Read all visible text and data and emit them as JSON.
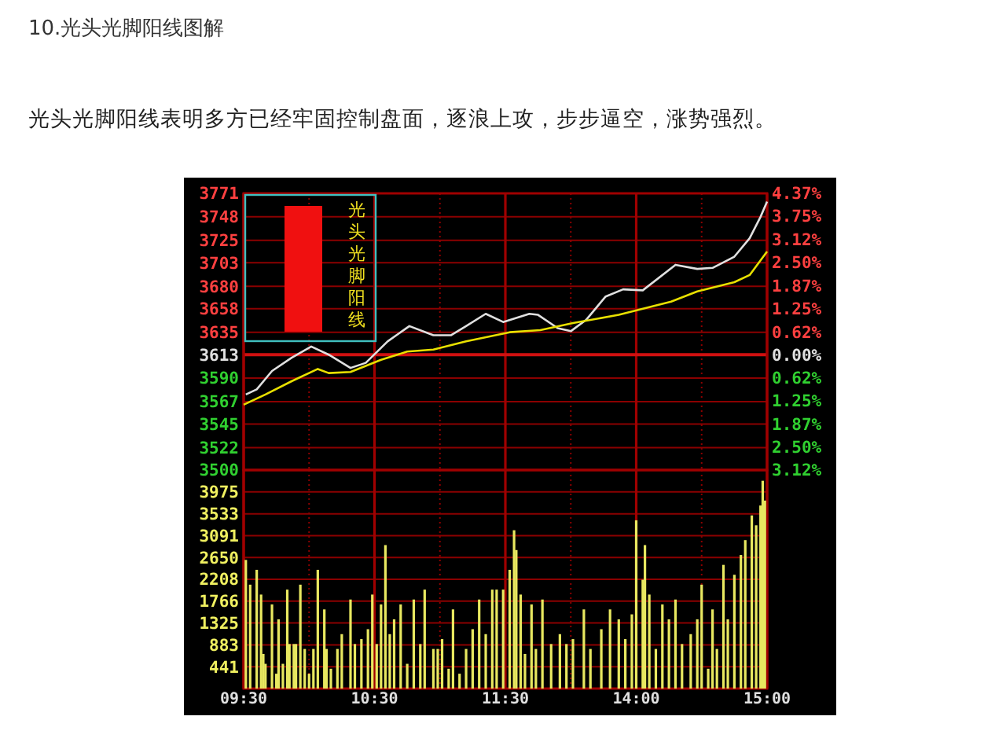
{
  "chart_data": [
    {
      "type": "line",
      "title": "10.光头光脚阳线图解",
      "subtitle": "光头光脚阳线表明多方已经牢固控制盘面，逐浪上攻，步步逼空，涨势强烈。",
      "annotations": [
        "光头光脚阳线"
      ],
      "tick_labels": "y",
      "grid": true,
      "marker": "none",
      "categories": [
        null,
        null,
        null,
        null,
        null,
        null,
        null,
        null,
        null,
        null,
        null,
        null,
        null,
        null,
        null,
        null,
        null,
        null,
        null,
        null,
        null,
        null,
        null,
        null,
        null,
        null,
        null,
        null,
        null,
        null,
        null,
        null,
        null,
        null,
        null,
        null,
        null,
        null,
        null,
        null,
        null,
        null,
        null,
        null,
        null,
        null,
        null,
        null,
        null,
        null,
        null,
        null,
        null,
        null,
        null,
        null,
        null,
        null,
        null,
        null,
        null,
        null,
        null,
        null,
        null,
        null,
        null,
        null,
        null,
        null,
        null,
        null,
        null,
        null,
        null,
        null,
        null,
        null,
        null,
        null,
        null,
        null,
        null,
        null,
        null,
        null,
        null,
        null,
        null,
        null,
        null,
        null,
        null,
        null,
        null,
        null,
        null,
        null,
        null,
        null,
        null,
        null,
        null,
        null,
        null,
        null,
        null,
        null,
        null,
        null,
        null,
        null,
        null,
        null,
        null,
        null,
        null,
        null,
        null,
        null,
        null,
        null,
        null,
        null,
        null,
        null,
        null,
        null,
        null,
        null,
        null,
        null,
        null,
        null,
        null,
        null,
        null,
        null,
        null,
        null,
        null,
        null,
        null,
        null,
        null,
        null,
        null,
        null,
        null,
        null,
        null,
        null,
        null,
        null,
        null,
        null,
        null,
        null,
        null,
        null,
        null,
        null,
        null,
        null,
        null,
        null,
        null,
        null,
        null,
        null,
        null,
        null,
        null,
        null,
        null,
        null,
        null,
        null,
        null,
        null,
        null,
        null,
        null,
        null,
        null,
        null,
        null,
        null,
        null,
        null,
        null,
        null,
        null,
        null,
        null,
        null,
        null,
        null,
        null,
        null,
        null,
        null,
        null,
        null,
        null,
        null,
        null,
        null,
        null,
        null,
        null,
        null,
        null,
        null,
        null,
        null,
        null,
        null,
        null,
        null,
        null,
        null,
        null,
        null,
        null,
        null,
        null,
        null,
        null,
        null,
        null,
        null,
        null,
        null,
        null,
        null,
        null,
        null,
        null,
        null,
        null
      ],
      "ylim": [
        3500,
        3771
      ],
      "yticks": [
        3500,
        3522,
        3545,
        3567,
        3590,
        3613,
        3635,
        3658,
        3680,
        3703,
        3725,
        3748,
        3771
      ],
      "y2lim": [
        -3.12,
        4.37
      ],
      "y2ticks": [
        {
          "value": -3.12,
          "label": "3.12%"
        },
        {
          "value": -2.5,
          "label": "2.50%"
        },
        {
          "value": -1.87,
          "label": "1.87%"
        },
        {
          "value": -1.25,
          "label": "1.25%"
        },
        {
          "value": -0.62,
          "label": "0.62%"
        },
        {
          "value": 0,
          "label": "0.00%"
        },
        {
          "value": 0.62,
          "label": "0.62%"
        },
        {
          "value": 1.25,
          "label": "1.25%"
        },
        {
          "value": 1.87,
          "label": "1.87%"
        },
        {
          "value": 2.5,
          "label": "2.50%"
        },
        {
          "value": 3.12,
          "label": "3.12%"
        },
        {
          "value": 3.75,
          "label": "3.75%"
        },
        {
          "value": 4.37,
          "label": "4.37%"
        }
      ],
      "ref_lines": [
        {
          "axis": "y",
          "value": 3613,
          "color": "#d01010"
        }
      ],
      "series": [
        {
          "color": "#e0e0e0",
          "values": [
            null,
            3574,
            null,
            null,
            null,
            null,
            3579,
            null,
            null,
            null,
            null,
            null,
            null,
            3597,
            null,
            null,
            null,
            null,
            null,
            null,
            null,
            null,
            3610,
            null,
            null,
            null,
            null,
            null,
            null,
            null,
            null,
            3621,
            null,
            null,
            null,
            null,
            null,
            null,
            null,
            3613,
            null,
            null,
            null,
            null,
            null,
            null,
            null,
            null,
            null,
            3600,
            null,
            null,
            null,
            null,
            null,
            null,
            3605,
            null,
            null,
            null,
            null,
            null,
            null,
            null,
            null,
            null,
            3626,
            null,
            null,
            null,
            null,
            null,
            null,
            null,
            null,
            null,
            3641,
            null,
            null,
            null,
            null,
            null,
            null,
            null,
            null,
            null,
            null,
            3632,
            null,
            null,
            null,
            null,
            null,
            null,
            null,
            3632,
            null,
            null,
            null,
            null,
            null,
            null,
            3641,
            null,
            null,
            null,
            null,
            null,
            null,
            null,
            null,
            3653,
            null,
            null,
            null,
            null,
            null,
            null,
            null,
            3645,
            null,
            null,
            null,
            null,
            null,
            null,
            null,
            null,
            null,
            null,
            null,
            3653,
            null,
            null,
            null,
            3652,
            null,
            null,
            null,
            null,
            null,
            null,
            null,
            null,
            3639,
            null,
            null,
            null,
            null,
            null,
            3636,
            null,
            null,
            null,
            null,
            null,
            null,
            3647,
            null,
            null,
            null,
            null,
            null,
            null,
            null,
            null,
            3670,
            null,
            null,
            null,
            null,
            null,
            null,
            null,
            3677,
            null,
            null,
            null,
            null,
            null,
            null,
            null,
            null,
            3676,
            null,
            null,
            null,
            null,
            null,
            null,
            null,
            null,
            null,
            null,
            null,
            null,
            null,
            null,
            3701,
            null,
            null,
            null,
            null,
            null,
            null,
            null,
            null,
            null,
            3697,
            null,
            null,
            null,
            null,
            null,
            null,
            3698,
            null,
            null,
            null,
            null,
            null,
            null,
            null,
            null,
            null,
            3709,
            null,
            null,
            null,
            null,
            null,
            null,
            3727,
            null,
            null,
            null,
            null,
            3748,
            null,
            null,
            3763
          ]
        },
        {
          "color": "#e8e000",
          "values": [
            3564,
            null,
            null,
            null,
            null,
            null,
            null,
            null,
            null,
            null,
            3574,
            null,
            null,
            null,
            null,
            null,
            null,
            null,
            null,
            null,
            null,
            null,
            3587,
            null,
            null,
            null,
            null,
            null,
            null,
            null,
            null,
            null,
            null,
            null,
            3599,
            null,
            null,
            null,
            null,
            3595,
            null,
            null,
            null,
            null,
            null,
            null,
            null,
            null,
            null,
            3596,
            null,
            null,
            null,
            null,
            null,
            null,
            null,
            null,
            null,
            null,
            null,
            null,
            null,
            3608,
            null,
            null,
            null,
            null,
            null,
            null,
            null,
            null,
            null,
            null,
            null,
            3616,
            null,
            null,
            null,
            null,
            null,
            null,
            null,
            null,
            null,
            null,
            null,
            3618,
            null,
            null,
            null,
            null,
            null,
            null,
            null,
            null,
            null,
            null,
            null,
            null,
            null,
            null,
            3626,
            null,
            null,
            null,
            null,
            null,
            null,
            null,
            null,
            null,
            null,
            null,
            null,
            null,
            null,
            null,
            null,
            null,
            null,
            null,
            3635,
            null,
            null,
            null,
            null,
            null,
            null,
            null,
            null,
            null,
            null,
            null,
            null,
            null,
            3637,
            null,
            null,
            null,
            null,
            null,
            null,
            null,
            null,
            null,
            null,
            null,
            null,
            null,
            null,
            3644,
            null,
            null,
            null,
            null,
            null,
            null,
            null,
            null,
            null,
            null,
            null,
            null,
            null,
            null,
            null,
            null,
            null,
            null,
            null,
            null,
            3652,
            null,
            null,
            null,
            null,
            null,
            null,
            null,
            null,
            null,
            null,
            null,
            null,
            null,
            null,
            null,
            null,
            null,
            null,
            null,
            null,
            null,
            null,
            null,
            3665,
            null,
            null,
            null,
            null,
            null,
            null,
            null,
            null,
            null,
            null,
            null,
            3675,
            null,
            null,
            null,
            null,
            null,
            null,
            null,
            null,
            null,
            null,
            null,
            null,
            null,
            null,
            null,
            null,
            3684,
            null,
            null,
            null,
            null,
            null,
            null,
            3691,
            null,
            null,
            null,
            null,
            null,
            null,
            null,
            3714
          ]
        }
      ]
    },
    {
      "type": "bar",
      "grid": true,
      "categories": [
        "09:30",
        null,
        null,
        null,
        null,
        null,
        null,
        null,
        null,
        null,
        null,
        null,
        null,
        null,
        null,
        null,
        null,
        null,
        null,
        null,
        null,
        null,
        null,
        null,
        null,
        null,
        null,
        null,
        null,
        null,
        null,
        null,
        null,
        null,
        null,
        null,
        null,
        null,
        null,
        null,
        null,
        null,
        null,
        null,
        null,
        null,
        null,
        null,
        null,
        null,
        null,
        null,
        null,
        null,
        null,
        null,
        null,
        null,
        null,
        null,
        "10:30",
        null,
        null,
        null,
        null,
        null,
        null,
        null,
        null,
        null,
        null,
        null,
        null,
        null,
        null,
        null,
        null,
        null,
        null,
        null,
        null,
        null,
        null,
        null,
        null,
        null,
        null,
        null,
        null,
        null,
        null,
        null,
        null,
        null,
        null,
        null,
        null,
        null,
        null,
        null,
        null,
        null,
        null,
        null,
        null,
        null,
        null,
        null,
        null,
        null,
        null,
        null,
        null,
        null,
        null,
        null,
        null,
        null,
        null,
        null,
        "11:30",
        null,
        null,
        null,
        null,
        null,
        null,
        null,
        null,
        null,
        null,
        null,
        null,
        null,
        null,
        null,
        null,
        null,
        null,
        null,
        null,
        null,
        null,
        null,
        null,
        null,
        null,
        null,
        null,
        null,
        null,
        null,
        null,
        null,
        null,
        null,
        null,
        null,
        null,
        null,
        null,
        null,
        null,
        null,
        null,
        null,
        null,
        null,
        null,
        null,
        null,
        null,
        null,
        null,
        null,
        null,
        null,
        null,
        null,
        null,
        "14:00",
        null,
        null,
        null,
        null,
        null,
        null,
        null,
        null,
        null,
        null,
        null,
        null,
        null,
        null,
        null,
        null,
        null,
        null,
        null,
        null,
        null,
        null,
        null,
        null,
        null,
        null,
        null,
        null,
        null,
        null,
        null,
        null,
        null,
        null,
        null,
        null,
        null,
        null,
        null,
        null,
        null,
        null,
        null,
        null,
        null,
        null,
        null,
        null,
        null,
        null,
        null,
        null,
        null,
        null,
        null,
        null,
        null,
        null,
        null,
        "15:00"
      ],
      "ylim": [
        0,
        4417
      ],
      "yticks": [
        441,
        883,
        1325,
        1766,
        2208,
        2650,
        3091,
        3533,
        3975
      ],
      "color": "#e8e860",
      "values": [
        null,
        2600,
        null,
        2100,
        null,
        null,
        2400,
        null,
        1900,
        700,
        500,
        null,
        null,
        1700,
        null,
        300,
        1400,
        null,
        500,
        null,
        2000,
        900,
        null,
        900,
        900,
        null,
        2100,
        null,
        800,
        null,
        300,
        null,
        800,
        null,
        2400,
        null,
        null,
        1600,
        800,
        null,
        400,
        null,
        null,
        800,
        null,
        1100,
        null,
        null,
        null,
        1800,
        null,
        900,
        null,
        null,
        1000,
        null,
        null,
        1200,
        null,
        1900,
        null,
        900,
        null,
        1700,
        null,
        2900,
        null,
        1100,
        null,
        1400,
        null,
        null,
        1700,
        null,
        null,
        500,
        null,
        null,
        1800,
        null,
        null,
        900,
        null,
        2000,
        null,
        null,
        null,
        800,
        null,
        800,
        null,
        1000,
        null,
        null,
        400,
        null,
        1600,
        null,
        null,
        300,
        null,
        null,
        800,
        null,
        null,
        1200,
        null,
        null,
        1800,
        null,
        null,
        1100,
        null,
        null,
        2000,
        null,
        2000,
        null,
        null,
        2000,
        null,
        null,
        2400,
        null,
        3200,
        2800,
        null,
        1900,
        null,
        700,
        null,
        null,
        1700,
        null,
        800,
        null,
        null,
        1800,
        null,
        null,
        null,
        900,
        null,
        null,
        null,
        1100,
        null,
        null,
        900,
        null,
        null,
        1000,
        null,
        null,
        null,
        null,
        1600,
        null,
        null,
        800,
        null,
        null,
        null,
        null,
        1200,
        null,
        null,
        null,
        1600,
        null,
        null,
        null,
        1400,
        null,
        null,
        1000,
        null,
        null,
        1500,
        null,
        3400,
        null,
        null,
        2200,
        2900,
        null,
        1900,
        null,
        null,
        800,
        null,
        null,
        1700,
        null,
        null,
        1400,
        null,
        null,
        1800,
        null,
        null,
        900,
        null,
        null,
        null,
        1100,
        null,
        null,
        1400,
        null,
        2100,
        null,
        null,
        400,
        null,
        1600,
        null,
        800,
        null,
        null,
        2500,
        null,
        1400,
        null,
        null,
        2300,
        null,
        null,
        2700,
        null,
        3000,
        null,
        null,
        3500,
        null,
        3300,
        null,
        3700,
        4200,
        3800,
        null
      ]
    }
  ]
}
